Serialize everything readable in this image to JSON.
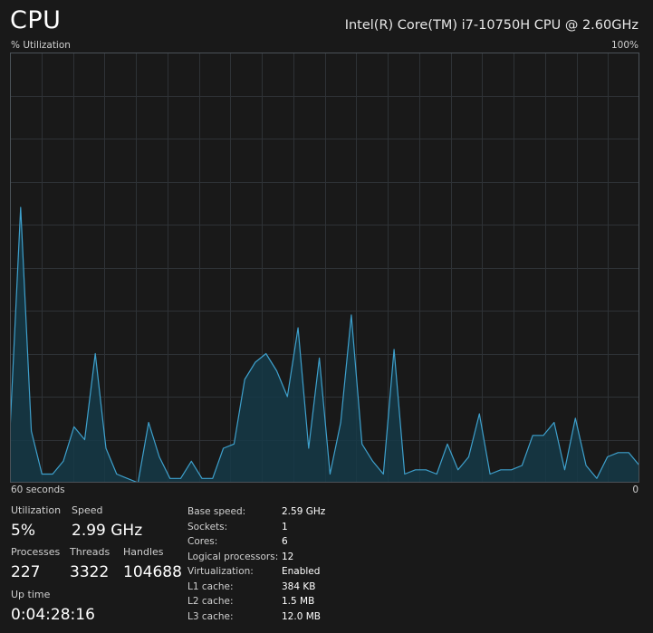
{
  "header": {
    "title": "CPU",
    "cpu_model": "Intel(R) Core(TM) i7-10750H CPU @ 2.60GHz"
  },
  "graph": {
    "y_label": "% Utilization",
    "y_max_label": "100%",
    "x_label": "60 seconds",
    "x_min_label": "0",
    "colors": {
      "line": "#3ea0cc",
      "fill": "#153a48",
      "grid": "#2e3236",
      "border": "#4b5258"
    }
  },
  "chart_data": {
    "type": "area",
    "ylim": [
      0,
      100
    ],
    "xlim": [
      60,
      0
    ],
    "x_unit": "seconds",
    "y_unit": "% Utilization",
    "grid": true,
    "values": [
      12,
      64,
      12,
      2,
      2,
      5,
      13,
      10,
      30,
      8,
      2,
      1,
      0,
      14,
      6,
      1,
      1,
      5,
      1,
      1,
      8,
      9,
      24,
      28,
      30,
      26,
      20,
      36,
      8,
      29,
      2,
      14,
      39,
      9,
      5,
      2,
      31,
      2,
      3,
      3,
      2,
      9,
      3,
      6,
      16,
      2,
      3,
      3,
      4,
      11,
      11,
      14,
      3,
      15,
      4,
      1,
      6,
      7,
      7,
      4
    ]
  },
  "stats": {
    "utilization": {
      "label": "Utilization",
      "value": "5%"
    },
    "speed": {
      "label": "Speed",
      "value": "2.99 GHz"
    },
    "processes": {
      "label": "Processes",
      "value": "227"
    },
    "threads": {
      "label": "Threads",
      "value": "3322"
    },
    "handles": {
      "label": "Handles",
      "value": "104688"
    },
    "uptime": {
      "label": "Up time",
      "value": "0:04:28:16"
    }
  },
  "specs": [
    {
      "key": "Base speed:",
      "value": "2.59 GHz"
    },
    {
      "key": "Sockets:",
      "value": "1"
    },
    {
      "key": "Cores:",
      "value": "6"
    },
    {
      "key": "Logical processors:",
      "value": "12"
    },
    {
      "key": "Virtualization:",
      "value": "Enabled"
    },
    {
      "key": "L1 cache:",
      "value": "384 KB"
    },
    {
      "key": "L2 cache:",
      "value": "1.5 MB"
    },
    {
      "key": "L3 cache:",
      "value": "12.0 MB"
    }
  ]
}
